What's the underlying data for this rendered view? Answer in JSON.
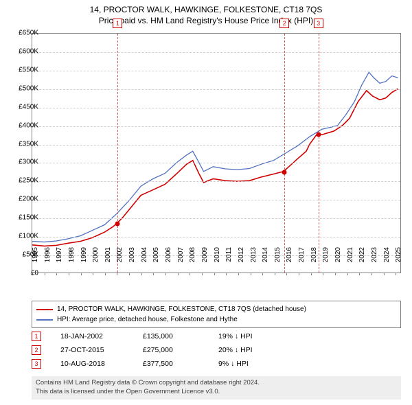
{
  "title": {
    "line1": "14, PROCTOR WALK, HAWKINGE, FOLKESTONE, CT18 7QS",
    "line2": "Price paid vs. HM Land Registry's House Price Index (HPI)"
  },
  "chart": {
    "type": "line",
    "background_color": "#ffffff",
    "grid_color": "#d0d0d0",
    "border_color": "#808080",
    "x_domain": [
      1995,
      2025.5
    ],
    "y_domain": [
      0,
      650
    ],
    "y_ticks": [
      0,
      50,
      100,
      150,
      200,
      250,
      300,
      350,
      400,
      450,
      500,
      550,
      600,
      650
    ],
    "y_tick_labels": [
      "£0",
      "£50K",
      "£100K",
      "£150K",
      "£200K",
      "£250K",
      "£300K",
      "£350K",
      "£400K",
      "£450K",
      "£500K",
      "£550K",
      "£600K",
      "£650K"
    ],
    "x_ticks": [
      1995,
      1996,
      1997,
      1998,
      1999,
      2000,
      2001,
      2002,
      2003,
      2004,
      2005,
      2006,
      2007,
      2008,
      2009,
      2010,
      2011,
      2012,
      2013,
      2014,
      2015,
      2016,
      2017,
      2018,
      2019,
      2020,
      2021,
      2022,
      2023,
      2024,
      2025
    ],
    "label_fontsize": 10,
    "series": {
      "property": {
        "color": "#d00000",
        "width": 1.6,
        "points": [
          [
            1995,
            75
          ],
          [
            1996,
            72
          ],
          [
            1997,
            74
          ],
          [
            1998,
            80
          ],
          [
            1999,
            85
          ],
          [
            2000,
            95
          ],
          [
            2001,
            110
          ],
          [
            2001.7,
            125
          ],
          [
            2002.05,
            135
          ],
          [
            2002.5,
            150
          ],
          [
            2003,
            170
          ],
          [
            2003.5,
            190
          ],
          [
            2004,
            210
          ],
          [
            2005,
            225
          ],
          [
            2006,
            240
          ],
          [
            2007,
            270
          ],
          [
            2007.8,
            295
          ],
          [
            2008.3,
            305
          ],
          [
            2008.8,
            270
          ],
          [
            2009.2,
            245
          ],
          [
            2010,
            255
          ],
          [
            2011,
            250
          ],
          [
            2012,
            248
          ],
          [
            2013,
            250
          ],
          [
            2014,
            260
          ],
          [
            2015,
            268
          ],
          [
            2015.82,
            275
          ],
          [
            2016.5,
            295
          ],
          [
            2017,
            310
          ],
          [
            2017.7,
            330
          ],
          [
            2018,
            350
          ],
          [
            2018.62,
            377.5
          ],
          [
            2019,
            375
          ],
          [
            2019.5,
            380
          ],
          [
            2020,
            385
          ],
          [
            2020.7,
            400
          ],
          [
            2021.3,
            420
          ],
          [
            2022,
            465
          ],
          [
            2022.7,
            495
          ],
          [
            2023.2,
            480
          ],
          [
            2023.8,
            470
          ],
          [
            2024.3,
            475
          ],
          [
            2024.8,
            490
          ],
          [
            2025.3,
            500
          ]
        ]
      },
      "hpi": {
        "color": "#5070c0",
        "width": 1.3,
        "points": [
          [
            1995,
            85
          ],
          [
            1996,
            83
          ],
          [
            1997,
            86
          ],
          [
            1998,
            92
          ],
          [
            1999,
            100
          ],
          [
            2000,
            115
          ],
          [
            2001,
            130
          ],
          [
            2002,
            160
          ],
          [
            2003,
            195
          ],
          [
            2004,
            235
          ],
          [
            2005,
            255
          ],
          [
            2006,
            270
          ],
          [
            2007,
            300
          ],
          [
            2007.8,
            320
          ],
          [
            2008.3,
            330
          ],
          [
            2008.8,
            300
          ],
          [
            2009.2,
            275
          ],
          [
            2010,
            288
          ],
          [
            2011,
            282
          ],
          [
            2012,
            280
          ],
          [
            2013,
            283
          ],
          [
            2014,
            295
          ],
          [
            2015,
            305
          ],
          [
            2016,
            325
          ],
          [
            2017,
            345
          ],
          [
            2018,
            370
          ],
          [
            2019,
            390
          ],
          [
            2019.7,
            395
          ],
          [
            2020.3,
            400
          ],
          [
            2021,
            430
          ],
          [
            2021.7,
            465
          ],
          [
            2022.3,
            510
          ],
          [
            2022.9,
            545
          ],
          [
            2023.3,
            530
          ],
          [
            2023.8,
            515
          ],
          [
            2024.3,
            520
          ],
          [
            2024.8,
            535
          ],
          [
            2025.3,
            530
          ]
        ]
      }
    },
    "sale_markers": [
      {
        "n": "1",
        "x": 2002.05,
        "y": 135
      },
      {
        "n": "2",
        "x": 2015.82,
        "y": 275
      },
      {
        "n": "3",
        "x": 2018.62,
        "y": 377.5
      }
    ],
    "marker_line_color": "#d06060",
    "marker_box_color": "#d00000"
  },
  "legend": {
    "items": [
      {
        "color": "#d00000",
        "label": "14, PROCTOR WALK, HAWKINGE, FOLKESTONE, CT18 7QS (detached house)"
      },
      {
        "color": "#5070c0",
        "label": "HPI: Average price, detached house, Folkestone and Hythe"
      }
    ]
  },
  "sales_table": [
    {
      "n": "1",
      "date": "18-JAN-2002",
      "price": "£135,000",
      "pct": "19% ↓ HPI"
    },
    {
      "n": "2",
      "date": "27-OCT-2015",
      "price": "£275,000",
      "pct": "20% ↓ HPI"
    },
    {
      "n": "3",
      "date": "10-AUG-2018",
      "price": "£377,500",
      "pct": "9% ↓ HPI"
    }
  ],
  "footer": {
    "line1": "Contains HM Land Registry data © Crown copyright and database right 2024.",
    "line2": "This data is licensed under the Open Government Licence v3.0."
  }
}
